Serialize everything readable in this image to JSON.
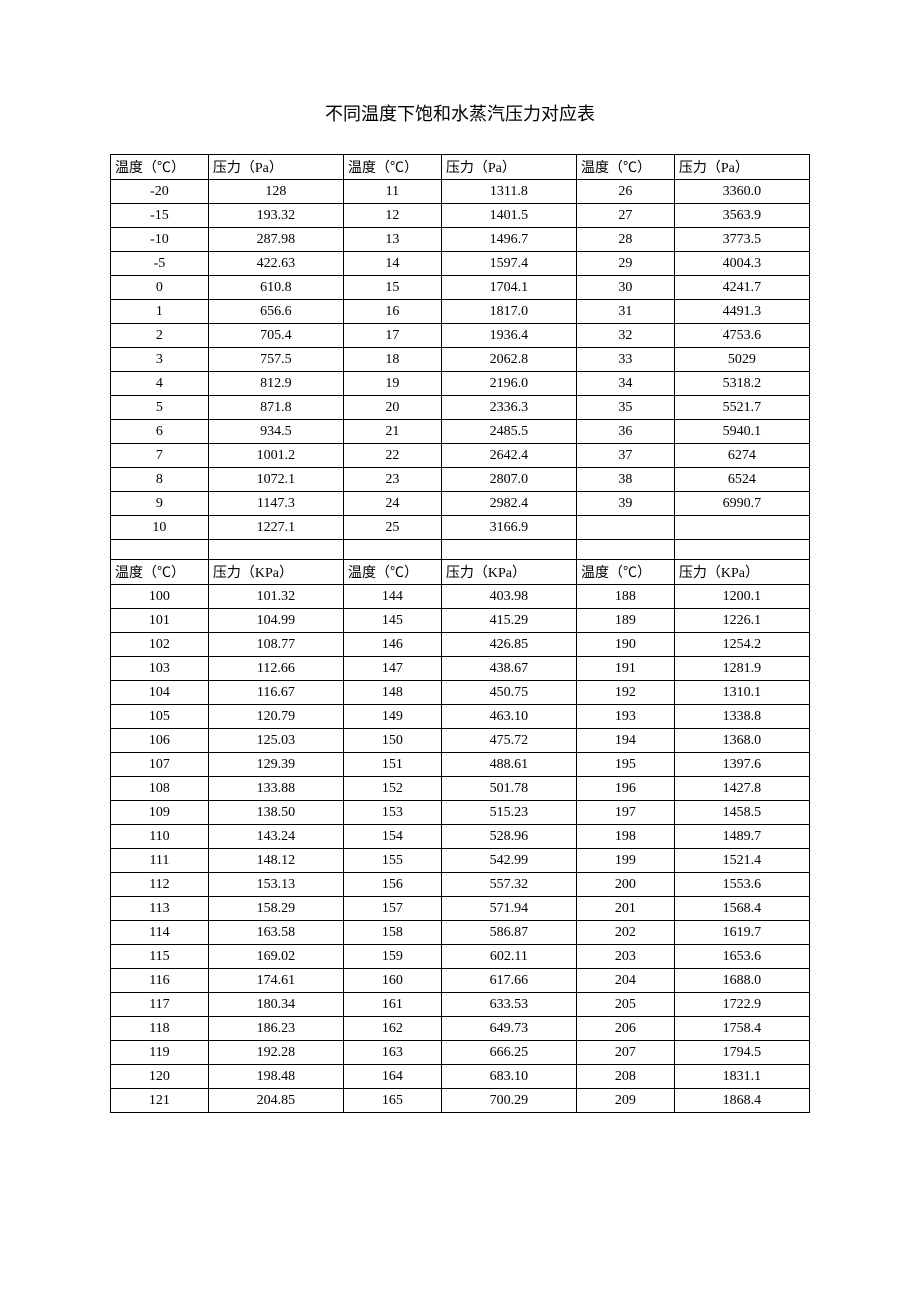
{
  "title": "不同温度下饱和水蒸汽压力对应表",
  "table1": {
    "headers": [
      "温度（℃）",
      "压力（Pa）",
      "温度（℃）",
      "压力（Pa）",
      "温度（℃）",
      "压力（Pa）"
    ],
    "rows": [
      [
        "-20",
        "128",
        "11",
        "1311.8",
        "26",
        "3360.0"
      ],
      [
        "-15",
        "193.32",
        "12",
        "1401.5",
        "27",
        "3563.9"
      ],
      [
        "-10",
        "287.98",
        "13",
        "1496.7",
        "28",
        "3773.5"
      ],
      [
        "-5",
        "422.63",
        "14",
        "1597.4",
        "29",
        "4004.3"
      ],
      [
        "0",
        "610.8",
        "15",
        "1704.1",
        "30",
        "4241.7"
      ],
      [
        "1",
        "656.6",
        "16",
        "1817.0",
        "31",
        "4491.3"
      ],
      [
        "2",
        "705.4",
        "17",
        "1936.4",
        "32",
        "4753.6"
      ],
      [
        "3",
        "757.5",
        "18",
        "2062.8",
        "33",
        "5029"
      ],
      [
        "4",
        "812.9",
        "19",
        "2196.0",
        "34",
        "5318.2"
      ],
      [
        "5",
        "871.8",
        "20",
        "2336.3",
        "35",
        "5521.7"
      ],
      [
        "6",
        "934.5",
        "21",
        "2485.5",
        "36",
        "5940.1"
      ],
      [
        "7",
        "1001.2",
        "22",
        "2642.4",
        "37",
        "6274"
      ],
      [
        "8",
        "1072.1",
        "23",
        "2807.0",
        "38",
        "6524"
      ],
      [
        "9",
        "1147.3",
        "24",
        "2982.4",
        "39",
        "6990.7"
      ],
      [
        "10",
        "1227.1",
        "25",
        "3166.9",
        "",
        ""
      ]
    ]
  },
  "table2": {
    "headers": [
      "温度（℃）",
      "压力（KPa）",
      "温度（℃）",
      "压力（KPa）",
      "温度（℃）",
      "压力（KPa）"
    ],
    "rows": [
      [
        "100",
        "101.32",
        "144",
        "403.98",
        "188",
        "1200.1"
      ],
      [
        "101",
        "104.99",
        "145",
        "415.29",
        "189",
        "1226.1"
      ],
      [
        "102",
        "108.77",
        "146",
        "426.85",
        "190",
        "1254.2"
      ],
      [
        "103",
        "112.66",
        "147",
        "438.67",
        "191",
        "1281.9"
      ],
      [
        "104",
        "116.67",
        "148",
        "450.75",
        "192",
        "1310.1"
      ],
      [
        "105",
        "120.79",
        "149",
        "463.10",
        "193",
        "1338.8"
      ],
      [
        "106",
        "125.03",
        "150",
        "475.72",
        "194",
        "1368.0"
      ],
      [
        "107",
        "129.39",
        "151",
        "488.61",
        "195",
        "1397.6"
      ],
      [
        "108",
        "133.88",
        "152",
        "501.78",
        "196",
        "1427.8"
      ],
      [
        "109",
        "138.50",
        "153",
        "515.23",
        "197",
        "1458.5"
      ],
      [
        "110",
        "143.24",
        "154",
        "528.96",
        "198",
        "1489.7"
      ],
      [
        "111",
        "148.12",
        "155",
        "542.99",
        "199",
        "1521.4"
      ],
      [
        "112",
        "153.13",
        "156",
        "557.32",
        "200",
        "1553.6"
      ],
      [
        "113",
        "158.29",
        "157",
        "571.94",
        "201",
        "1568.4"
      ],
      [
        "114",
        "163.58",
        "158",
        "586.87",
        "202",
        "1619.7"
      ],
      [
        "115",
        "169.02",
        "159",
        "602.11",
        "203",
        "1653.6"
      ],
      [
        "116",
        "174.61",
        "160",
        "617.66",
        "204",
        "1688.0"
      ],
      [
        "117",
        "180.34",
        "161",
        "633.53",
        "205",
        "1722.9"
      ],
      [
        "118",
        "186.23",
        "162",
        "649.73",
        "206",
        "1758.4"
      ],
      [
        "119",
        "192.28",
        "163",
        "666.25",
        "207",
        "1794.5"
      ],
      [
        "120",
        "198.48",
        "164",
        "683.10",
        "208",
        "1831.1"
      ],
      [
        "121",
        "204.85",
        "165",
        "700.29",
        "209",
        "1868.4"
      ]
    ]
  },
  "colors": {
    "background": "#ffffff",
    "text": "#000000",
    "border": "#000000"
  },
  "typography": {
    "title_fontsize": 18,
    "cell_fontsize": 14,
    "font_family": "SimSun"
  }
}
